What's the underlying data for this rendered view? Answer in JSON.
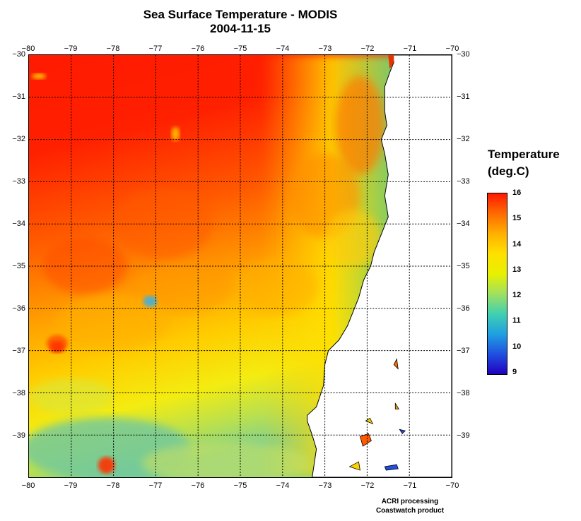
{
  "title_line1": "Sea Surface Temperature - MODIS",
  "title_line2": "2004-11-15",
  "x_ticks": [
    "−80",
    "−79",
    "−78",
    "−77",
    "−76",
    "−75",
    "−74",
    "−73",
    "−72",
    "−71",
    "−70"
  ],
  "y_ticks": [
    "−30",
    "−31",
    "−32",
    "−33",
    "−34",
    "−35",
    "−36",
    "−37",
    "−38",
    "−39"
  ],
  "colorbar": {
    "title_line1": "Temperature",
    "title_line2": "(deg.C)",
    "labels": [
      "16",
      "15",
      "14",
      "13",
      "12",
      "11",
      "10",
      "9"
    ],
    "colors": [
      "#ff1a00",
      "#ff6a00",
      "#ffb000",
      "#ffe000",
      "#e8f000",
      "#a0e060",
      "#40d0b0",
      "#20a0e0",
      "#2050e0",
      "#2000c0"
    ]
  },
  "credit_line1": "ACRI processing",
  "credit_line2": "Coastwatch product",
  "map": {
    "lon_range": [
      -80,
      -70
    ],
    "lat_range": [
      -40,
      -30
    ],
    "grid": true,
    "land_color": "#ffffff",
    "coast_color": "#000000"
  }
}
